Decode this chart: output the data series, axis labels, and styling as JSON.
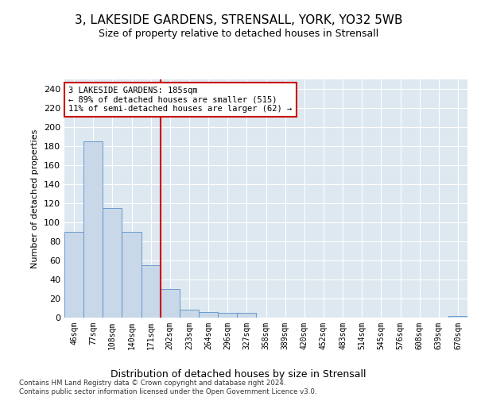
{
  "title": "3, LAKESIDE GARDENS, STRENSALL, YORK, YO32 5WB",
  "subtitle": "Size of property relative to detached houses in Strensall",
  "xlabel": "Distribution of detached houses by size in Strensall",
  "ylabel": "Number of detached properties",
  "bar_labels": [
    "46sqm",
    "77sqm",
    "108sqm",
    "140sqm",
    "171sqm",
    "202sqm",
    "233sqm",
    "264sqm",
    "296sqm",
    "327sqm",
    "358sqm",
    "389sqm",
    "420sqm",
    "452sqm",
    "483sqm",
    "514sqm",
    "545sqm",
    "576sqm",
    "608sqm",
    "639sqm",
    "670sqm"
  ],
  "bar_values": [
    90,
    185,
    115,
    90,
    55,
    30,
    8,
    6,
    5,
    5,
    0,
    0,
    0,
    0,
    0,
    0,
    0,
    0,
    0,
    0,
    2
  ],
  "bar_color": "#c8d8e8",
  "bar_edge_color": "#5b8fc9",
  "vline_x": 4.5,
  "vline_color": "#cc0000",
  "annotation_text": "3 LAKESIDE GARDENS: 185sqm\n← 89% of detached houses are smaller (515)\n11% of semi-detached houses are larger (62) →",
  "annotation_box_color": "#cc0000",
  "ylim": [
    0,
    250
  ],
  "yticks": [
    0,
    20,
    40,
    60,
    80,
    100,
    120,
    140,
    160,
    180,
    200,
    220,
    240
  ],
  "footer": "Contains HM Land Registry data © Crown copyright and database right 2024.\nContains public sector information licensed under the Open Government Licence v3.0.",
  "background_color": "#dde8f0",
  "fig_background": "#ffffff"
}
